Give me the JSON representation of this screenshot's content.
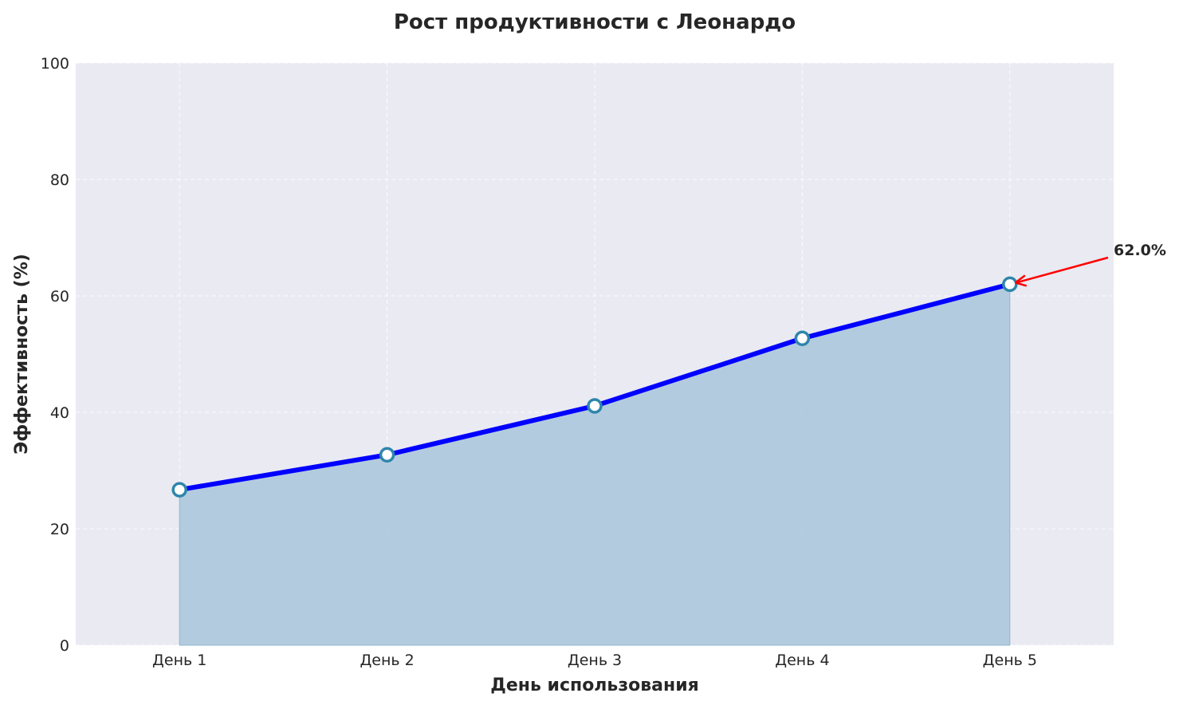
{
  "chart_data": {
    "type": "area",
    "title": "Рост продуктивности с Леонардо",
    "xlabel": "День использования",
    "ylabel": "Эффективность (%)",
    "categories": [
      "День 1",
      "День 2",
      "День 3",
      "День 4",
      "День 5"
    ],
    "values": [
      26.7,
      32.7,
      41.1,
      52.7,
      62.0
    ],
    "ylim": [
      0,
      100
    ],
    "yticks": [
      "0",
      "20",
      "40",
      "60",
      "80",
      "100"
    ],
    "grid": true,
    "annotation": {
      "text": "62.0%",
      "target_index": 4,
      "color": "#ff0000"
    },
    "colors": {
      "line": "#0000ff",
      "fill": "#a9c6db",
      "marker_edge": "#2e86ab",
      "background": "#eaeaf2"
    }
  }
}
